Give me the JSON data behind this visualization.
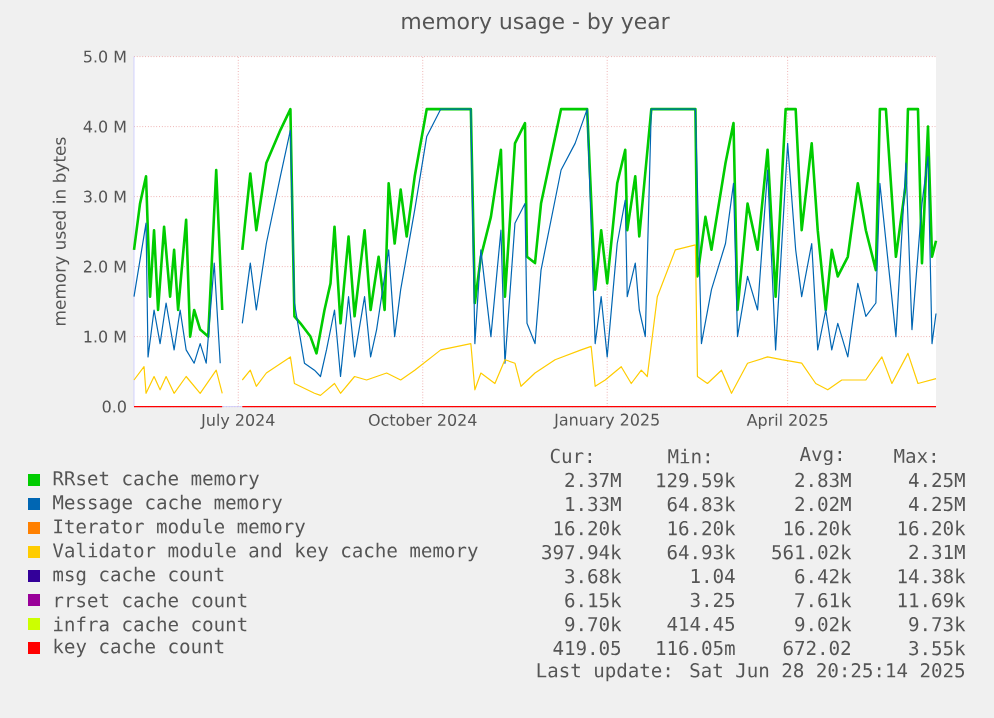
{
  "chart_data": {
    "type": "line",
    "title": "memory usage - by year",
    "ylabel": "memory used in bytes",
    "xlim": [
      "2024-05-24",
      "2025-06-28"
    ],
    "xticks": [
      {
        "value": "2024-07-15",
        "label": "July 2024"
      },
      {
        "value": "2024-10-15",
        "label": "October 2024"
      },
      {
        "value": "2025-01-15",
        "label": "January 2025"
      },
      {
        "value": "2025-04-15",
        "label": "April 2025"
      }
    ],
    "ylim": [
      0,
      5
    ],
    "yticks": [
      {
        "value": 0,
        "label": "0.0"
      },
      {
        "value": 1,
        "label": "1.0 M"
      },
      {
        "value": 2,
        "label": "2.0 M"
      },
      {
        "value": 3,
        "label": "3.0 M"
      },
      {
        "value": 4,
        "label": "4.0 M"
      },
      {
        "value": 5,
        "label": "5.0 M"
      }
    ],
    "grid": true,
    "legend": "bottom",
    "series": [
      {
        "name": "RRset cache memory",
        "color": "#00cc00",
        "x": [
          "2024-05-24",
          "2024-05-27",
          "2024-05-30",
          "2024-06-01",
          "2024-06-03",
          "2024-06-05",
          "2024-06-08",
          "2024-06-11",
          "2024-06-13",
          "2024-06-15",
          "2024-06-19",
          "2024-06-21",
          "2024-06-23",
          "2024-06-26",
          "2024-06-30",
          "2024-07-04",
          "2024-07-07",
          "2024-07-12",
          "2024-07-17",
          "2024-07-21",
          "2024-07-24",
          "2024-07-29",
          "2024-08-05",
          "2024-08-10",
          "2024-08-12",
          "2024-08-15",
          "2024-08-20",
          "2024-08-23",
          "2024-08-27",
          "2024-08-30",
          "2024-09-01",
          "2024-09-04",
          "2024-09-08",
          "2024-09-11",
          "2024-09-16",
          "2024-09-19",
          "2024-09-23",
          "2024-09-26",
          "2024-09-28",
          "2024-10-01",
          "2024-10-04",
          "2024-10-07",
          "2024-10-11",
          "2024-10-17",
          "2024-11-08",
          "2024-11-10",
          "2024-11-13",
          "2024-11-18",
          "2024-11-23",
          "2024-11-25",
          "2024-11-30",
          "2024-12-05",
          "2024-12-06",
          "2024-12-10",
          "2024-12-13",
          "2024-12-23",
          "2025-01-05",
          "2025-01-09",
          "2025-01-12",
          "2025-01-15",
          "2025-01-20",
          "2025-01-24",
          "2025-01-25",
          "2025-01-29",
          "2025-01-31",
          "2025-02-06",
          "2025-02-28",
          "2025-03-01",
          "2025-03-05",
          "2025-03-08",
          "2025-03-15",
          "2025-03-19",
          "2025-03-21",
          "2025-03-26",
          "2025-03-31",
          "2025-04-05",
          "2025-04-09",
          "2025-04-14",
          "2025-04-19",
          "2025-04-22",
          "2025-04-27",
          "2025-04-30",
          "2025-05-04",
          "2025-05-07",
          "2025-05-10",
          "2025-05-15",
          "2025-05-20",
          "2025-05-24",
          "2025-05-29",
          "2025-05-31",
          "2025-06-03",
          "2025-06-08",
          "2025-06-13",
          "2025-06-14",
          "2025-06-19",
          "2025-06-21",
          "2025-06-24",
          "2025-06-26",
          "2025-06-28"
        ],
        "values": [
          2.24,
          2.9,
          3.29,
          1.57,
          2.52,
          1.38,
          2.57,
          1.57,
          2.24,
          1.38,
          2.67,
          1.0,
          1.38,
          1.1,
          1.0,
          3.38,
          1.38,
          null,
          2.24,
          3.33,
          2.52,
          3.48,
          3.95,
          4.25,
          1.29,
          1.19,
          1.0,
          0.76,
          1.38,
          1.76,
          2.57,
          1.19,
          2.43,
          1.29,
          2.52,
          1.38,
          2.14,
          1.38,
          3.19,
          2.33,
          3.1,
          2.43,
          3.29,
          4.25,
          4.25,
          1.48,
          2.14,
          2.71,
          3.67,
          1.57,
          3.76,
          4.05,
          2.14,
          2.05,
          2.9,
          4.25,
          4.25,
          1.67,
          2.52,
          1.76,
          3.19,
          3.67,
          2.52,
          3.29,
          2.43,
          4.25,
          4.25,
          1.86,
          2.71,
          2.24,
          3.48,
          4.05,
          1.38,
          2.9,
          2.24,
          3.67,
          1.57,
          4.25,
          4.25,
          2.52,
          3.76,
          2.52,
          1.38,
          2.24,
          1.86,
          2.14,
          3.19,
          2.52,
          1.95,
          4.25,
          4.25,
          2.14,
          3.19,
          4.25,
          4.25,
          2.05,
          4.0,
          2.14,
          2.37
        ]
      },
      {
        "name": "Message cache memory",
        "color": "#0066b3",
        "x": [
          "2024-05-24",
          "2024-05-30",
          "2024-05-31",
          "2024-06-03",
          "2024-06-06",
          "2024-06-09",
          "2024-06-13",
          "2024-06-16",
          "2024-06-19",
          "2024-06-23",
          "2024-06-26",
          "2024-06-29",
          "2024-07-03",
          "2024-07-06",
          "2024-07-12",
          "2024-07-17",
          "2024-07-21",
          "2024-07-24",
          "2024-07-29",
          "2024-08-05",
          "2024-08-10",
          "2024-08-12",
          "2024-08-17",
          "2024-08-22",
          "2024-08-25",
          "2024-08-28",
          "2024-09-01",
          "2024-09-04",
          "2024-09-08",
          "2024-09-11",
          "2024-09-16",
          "2024-09-19",
          "2024-09-22",
          "2024-09-28",
          "2024-10-01",
          "2024-10-04",
          "2024-10-11",
          "2024-10-17",
          "2024-10-24",
          "2024-11-08",
          "2024-11-10",
          "2024-11-13",
          "2024-11-18",
          "2024-11-23",
          "2024-11-25",
          "2024-11-30",
          "2024-12-05",
          "2024-12-06",
          "2024-12-10",
          "2024-12-13",
          "2024-12-23",
          "2024-12-30",
          "2025-01-05",
          "2025-01-09",
          "2025-01-12",
          "2025-01-15",
          "2025-01-20",
          "2025-01-24",
          "2025-01-25",
          "2025-01-29",
          "2025-01-31",
          "2025-02-03",
          "2025-02-06",
          "2025-02-28",
          "2025-03-03",
          "2025-03-08",
          "2025-03-15",
          "2025-03-19",
          "2025-03-21",
          "2025-03-26",
          "2025-03-31",
          "2025-04-05",
          "2025-04-09",
          "2025-04-15",
          "2025-04-19",
          "2025-04-22",
          "2025-04-27",
          "2025-04-30",
          "2025-05-04",
          "2025-05-07",
          "2025-05-10",
          "2025-05-15",
          "2025-05-20",
          "2025-05-24",
          "2025-05-29",
          "2025-05-31",
          "2025-06-08",
          "2025-06-13",
          "2025-06-16",
          "2025-06-21",
          "2025-06-24",
          "2025-06-26",
          "2025-06-28"
        ],
        "values": [
          1.57,
          2.62,
          0.71,
          1.38,
          0.9,
          1.48,
          0.81,
          1.38,
          0.81,
          0.62,
          0.9,
          0.62,
          2.05,
          0.62,
          null,
          1.19,
          2.05,
          1.38,
          2.33,
          3.29,
          3.95,
          1.48,
          0.62,
          0.52,
          0.43,
          0.81,
          1.38,
          0.43,
          1.57,
          0.71,
          1.57,
          0.71,
          1.1,
          2.24,
          1.0,
          1.67,
          2.81,
          3.86,
          4.25,
          4.25,
          0.9,
          2.24,
          1.0,
          2.52,
          0.62,
          2.62,
          2.9,
          1.19,
          0.9,
          1.95,
          3.38,
          3.76,
          4.25,
          0.9,
          1.57,
          0.71,
          2.33,
          2.95,
          1.57,
          2.05,
          1.38,
          1.0,
          4.25,
          4.25,
          0.9,
          1.67,
          2.33,
          3.19,
          1.0,
          1.86,
          1.38,
          3.38,
          0.81,
          3.76,
          2.24,
          1.57,
          2.33,
          0.81,
          1.38,
          0.81,
          1.19,
          0.71,
          1.76,
          1.29,
          1.48,
          3.19,
          1.0,
          3.48,
          1.1,
          2.9,
          3.57,
          0.9,
          1.33
        ]
      },
      {
        "name": "Iterator module memory",
        "color": "#ff8000"
      },
      {
        "name": "Validator module and key cache memory",
        "color": "#ffcc00",
        "x": [
          "2024-05-24",
          "2024-05-29",
          "2024-05-30",
          "2024-06-03",
          "2024-06-06",
          "2024-06-09",
          "2024-06-13",
          "2024-06-19",
          "2024-06-26",
          "2024-07-04",
          "2024-07-07",
          "2024-07-12",
          "2024-07-17",
          "2024-07-21",
          "2024-07-24",
          "2024-07-29",
          "2024-08-10",
          "2024-08-12",
          "2024-08-22",
          "2024-08-25",
          "2024-09-01",
          "2024-09-04",
          "2024-09-11",
          "2024-09-17",
          "2024-09-27",
          "2024-10-04",
          "2024-10-11",
          "2024-10-24",
          "2024-11-08",
          "2024-11-10",
          "2024-11-13",
          "2024-11-20",
          "2024-11-25",
          "2024-11-30",
          "2024-12-03",
          "2024-12-10",
          "2024-12-20",
          "2025-01-02",
          "2025-01-07",
          "2025-01-09",
          "2025-01-14",
          "2025-01-22",
          "2025-01-27",
          "2025-02-01",
          "2025-02-04",
          "2025-02-09",
          "2025-02-18",
          "2025-02-28",
          "2025-03-01",
          "2025-03-06",
          "2025-03-13",
          "2025-03-18",
          "2025-03-26",
          "2025-04-05",
          "2025-04-12",
          "2025-04-22",
          "2025-04-29",
          "2025-05-05",
          "2025-05-12",
          "2025-05-24",
          "2025-06-01",
          "2025-06-06",
          "2025-06-14",
          "2025-06-19",
          "2025-06-28"
        ],
        "values": [
          0.38,
          0.57,
          0.19,
          0.43,
          0.24,
          0.43,
          0.19,
          0.43,
          0.19,
          0.52,
          0.19,
          null,
          0.38,
          0.52,
          0.29,
          0.48,
          0.71,
          0.33,
          0.19,
          0.16,
          0.33,
          0.19,
          0.43,
          0.38,
          0.48,
          0.38,
          0.52,
          0.81,
          0.9,
          0.24,
          0.48,
          0.33,
          0.67,
          0.62,
          0.29,
          0.48,
          0.67,
          0.81,
          0.86,
          0.29,
          0.38,
          0.57,
          0.33,
          0.52,
          0.43,
          1.57,
          2.24,
          2.31,
          0.43,
          0.33,
          0.52,
          0.19,
          0.62,
          0.71,
          0.67,
          0.62,
          0.33,
          0.24,
          0.38,
          0.38,
          0.71,
          0.33,
          0.76,
          0.33,
          0.4
        ]
      },
      {
        "name": "msg cache count",
        "color": "#330099"
      },
      {
        "name": "rrset cache count",
        "color": "#990099"
      },
      {
        "name": "infra cache count",
        "color": "#ccff00"
      },
      {
        "name": "key cache count",
        "color": "#ff0000",
        "x": [
          "2024-05-24",
          "2024-07-07",
          "2024-07-12",
          "2024-07-17",
          "2025-06-28"
        ],
        "values": [
          0,
          0,
          null,
          0,
          0
        ]
      }
    ],
    "annotations": [
      "Cur:",
      "Min:",
      "Avg:",
      "Max:",
      "2.37M",
      "129.59k",
      "2.83M",
      "4.25M",
      "1.33M",
      "64.83k",
      "2.02M",
      "4.25M",
      "16.20k",
      "16.20k",
      "16.20k",
      "16.20k",
      "397.94k",
      "64.93k",
      "561.02k",
      "2.31M",
      "3.68k",
      "1.04",
      "6.42k",
      "14.38k",
      "6.15k",
      "3.25",
      "7.61k",
      "11.69k",
      "9.70k",
      "414.45",
      "9.02k",
      "9.73k",
      "419.05",
      "116.05m",
      "672.02",
      "3.55k",
      "Last update: Sat Jun 28 20:25:14 2025"
    ]
  }
}
